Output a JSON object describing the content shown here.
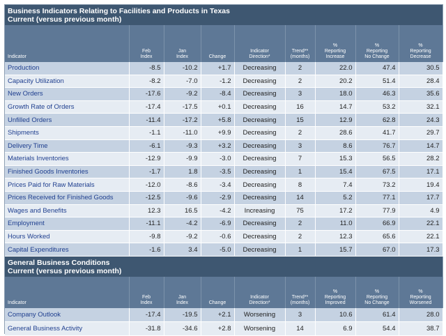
{
  "section1": {
    "title": "Business Indicators Relating to Facilities and Products in Texas",
    "subtitle": "Current (versus previous month)",
    "headers": [
      "Indicator",
      "Feb Index",
      "Jan Index",
      "Change",
      "Indicator Direction*",
      "Trend** (months)",
      "% Reporting Increase",
      "% Reporting No Change",
      "% Reporting Decrease"
    ],
    "rows": [
      [
        "Production",
        "-8.5",
        "-10.2",
        "+1.7",
        "Decreasing",
        "2",
        "22.0",
        "47.4",
        "30.5"
      ],
      [
        "Capacity Utilization",
        "-8.2",
        "-7.0",
        "-1.2",
        "Decreasing",
        "2",
        "20.2",
        "51.4",
        "28.4"
      ],
      [
        "New Orders",
        "-17.6",
        "-9.2",
        "-8.4",
        "Decreasing",
        "3",
        "18.0",
        "46.3",
        "35.6"
      ],
      [
        "Growth Rate of Orders",
        "-17.4",
        "-17.5",
        "+0.1",
        "Decreasing",
        "16",
        "14.7",
        "53.2",
        "32.1"
      ],
      [
        "Unfilled Orders",
        "-11.4",
        "-17.2",
        "+5.8",
        "Decreasing",
        "15",
        "12.9",
        "62.8",
        "24.3"
      ],
      [
        "Shipments",
        "-1.1",
        "-11.0",
        "+9.9",
        "Decreasing",
        "2",
        "28.6",
        "41.7",
        "29.7"
      ],
      [
        "Delivery Time",
        "-6.1",
        "-9.3",
        "+3.2",
        "Decreasing",
        "3",
        "8.6",
        "76.7",
        "14.7"
      ],
      [
        "Materials Inventories",
        "-12.9",
        "-9.9",
        "-3.0",
        "Decreasing",
        "7",
        "15.3",
        "56.5",
        "28.2"
      ],
      [
        "Finished Goods Inventories",
        "-1.7",
        "1.8",
        "-3.5",
        "Decreasing",
        "1",
        "15.4",
        "67.5",
        "17.1"
      ],
      [
        "Prices Paid for Raw Materials",
        "-12.0",
        "-8.6",
        "-3.4",
        "Decreasing",
        "8",
        "7.4",
        "73.2",
        "19.4"
      ],
      [
        "Prices Received for Finished Goods",
        "-12.5",
        "-9.6",
        "-2.9",
        "Decreasing",
        "14",
        "5.2",
        "77.1",
        "17.7"
      ],
      [
        "Wages and Benefits",
        "12.3",
        "16.5",
        "-4.2",
        "Increasing",
        "75",
        "17.2",
        "77.9",
        "4.9"
      ],
      [
        "Employment",
        "-11.1",
        "-4.2",
        "-6.9",
        "Decreasing",
        "2",
        "11.0",
        "66.9",
        "22.1"
      ],
      [
        "Hours Worked",
        "-9.8",
        "-9.2",
        "-0.6",
        "Decreasing",
        "2",
        "12.3",
        "65.6",
        "22.1"
      ],
      [
        "Capital Expenditures",
        "-1.6",
        "3.4",
        "-5.0",
        "Decreasing",
        "1",
        "15.7",
        "67.0",
        "17.3"
      ]
    ]
  },
  "section2": {
    "title": "General Business Conditions",
    "subtitle": "Current (versus previous month)",
    "headers": [
      "Indicator",
      "Feb Index",
      "Jan Index",
      "Change",
      "Indicator Direction*",
      "Trend** (months)",
      "% Reporting Improved",
      "% Reporting No Change",
      "% Reporting Worsened"
    ],
    "rows": [
      [
        "Company Outlook",
        "-17.4",
        "-19.5",
        "+2.1",
        "Worsening",
        "3",
        "10.6",
        "61.4",
        "28.0"
      ],
      [
        "General Business Activity",
        "-31.8",
        "-34.6",
        "+2.8",
        "Worsening",
        "14",
        "6.9",
        "54.4",
        "38.7"
      ]
    ]
  }
}
